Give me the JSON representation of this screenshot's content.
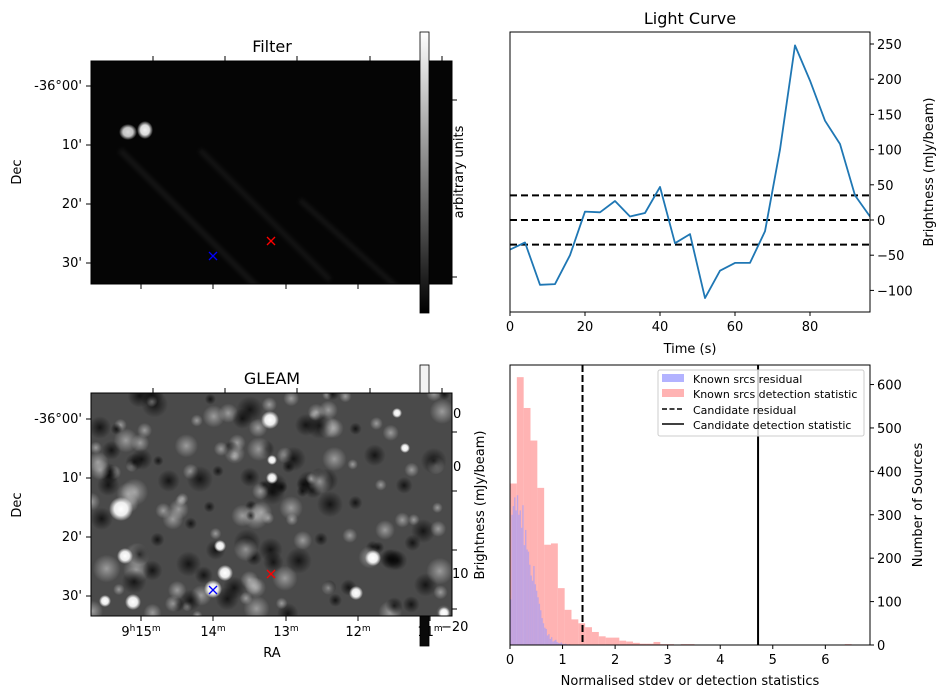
{
  "panels": {
    "filter": {
      "title": "Filter",
      "ylabel": "Dec",
      "dec_ticks": [
        "-36°00'",
        "10'",
        "20'",
        "30'"
      ],
      "colorbar_label": "arbitrary units",
      "blue_marker": "x",
      "red_marker": "x"
    },
    "gleam": {
      "title": "GLEAM",
      "ylabel": "Dec",
      "xlabel": "RA",
      "dec_ticks": [
        "-36°00'",
        "10'",
        "20'",
        "30'"
      ],
      "ra_ticks": [
        {
          "h": "9",
          "m": "15"
        },
        {
          "h": "",
          "m": "14"
        },
        {
          "h": "",
          "m": "13"
        },
        {
          "h": "",
          "m": "12"
        },
        {
          "h": "",
          "m": "11"
        }
      ],
      "colorbar_label": "Brightness (mJy/beam)",
      "colorbar_ticks": [
        "0",
        "0",
        "10",
        "−20"
      ]
    }
  },
  "chart_data": [
    {
      "type": "line",
      "title": "Light Curve",
      "xlabel": "Time (s)",
      "ylabel": "Brightness (mJy/beam)",
      "xlim": [
        0,
        96
      ],
      "ylim": [
        -130,
        265
      ],
      "xticks": [
        0,
        20,
        40,
        60,
        80
      ],
      "yticks": [
        -100,
        -50,
        0,
        50,
        100,
        150,
        200,
        250
      ],
      "series": [
        {
          "name": "light curve",
          "color": "#1f77b4",
          "x": [
            0,
            4,
            8,
            12,
            16,
            20,
            24,
            28,
            32,
            36,
            40,
            44,
            48,
            52,
            56,
            60,
            64,
            68,
            72,
            76,
            80,
            84,
            88,
            92,
            96
          ],
          "y": [
            -42,
            -32,
            -92,
            -91,
            -50,
            12,
            11,
            27,
            5,
            10,
            47,
            -33,
            -20,
            -111,
            -72,
            -61,
            -61,
            -16,
            100,
            248,
            198,
            141,
            108,
            35,
            5
          ]
        }
      ],
      "hlines": [
        {
          "y": 35,
          "style": "dashed",
          "color": "#000000"
        },
        {
          "y": 0,
          "style": "dashed",
          "color": "#000000"
        },
        {
          "y": -35,
          "style": "dashed",
          "color": "#000000"
        }
      ]
    },
    {
      "type": "bar",
      "title": "",
      "xlabel": "Normalised stdev or detection statistics",
      "ylabel": "Number of Sources",
      "ylabel_left": "Brightness (mJy/beam)",
      "xlim": [
        0,
        6.85
      ],
      "ylim": [
        0,
        645
      ],
      "xticks": [
        0,
        1,
        2,
        3,
        4,
        5,
        6
      ],
      "yticks": [
        0,
        100,
        200,
        300,
        400,
        500,
        600
      ],
      "legend_position": "top-right",
      "series": [
        {
          "name": "Known srcs detection statistic",
          "color": "#ff9999",
          "bin_width": 0.13,
          "bin_start": 0,
          "values": [
            372,
            617,
            546,
            471,
            362,
            231,
            234,
            131,
            81,
            59,
            50,
            41,
            30,
            20,
            17,
            17,
            10,
            8,
            5,
            3,
            3,
            7,
            2,
            2,
            1,
            2,
            2,
            0,
            1,
            0,
            0,
            0,
            0,
            0,
            0,
            0,
            0,
            0,
            0,
            0,
            0,
            0,
            0,
            0,
            0,
            0,
            0,
            0,
            0,
            2,
            0
          ]
        },
        {
          "name": "Known srcs residual",
          "color": "#9999ff",
          "bin_width": 0.026,
          "bin_start": 0,
          "values": [
            105,
            300,
            320,
            340,
            310,
            345,
            300,
            310,
            270,
            322,
            230,
            265,
            220,
            215,
            185,
            160,
            148,
            182,
            140,
            125,
            110,
            95,
            80,
            62,
            50,
            40,
            37,
            22,
            25,
            14,
            18,
            8,
            10,
            12,
            7,
            5,
            4,
            6,
            3,
            2,
            3,
            2,
            1,
            2,
            1,
            1,
            1,
            0,
            1,
            0
          ]
        }
      ],
      "vlines": [
        {
          "name": "Candidate residual",
          "x": 1.38,
          "style": "dashed",
          "color": "#000000"
        },
        {
          "name": "Candidate detection statistic",
          "x": 4.72,
          "style": "solid",
          "color": "#000000"
        }
      ],
      "legend": [
        {
          "label": "Known srcs residual",
          "kind": "patch",
          "color": "#b3b3ff"
        },
        {
          "label": "Known srcs detection statistic",
          "kind": "patch",
          "color": "#ffb3b3"
        },
        {
          "label": "Candidate residual",
          "kind": "dashed-line",
          "color": "#000000"
        },
        {
          "label": "Candidate detection statistic",
          "kind": "solid-line",
          "color": "#000000"
        }
      ]
    }
  ]
}
